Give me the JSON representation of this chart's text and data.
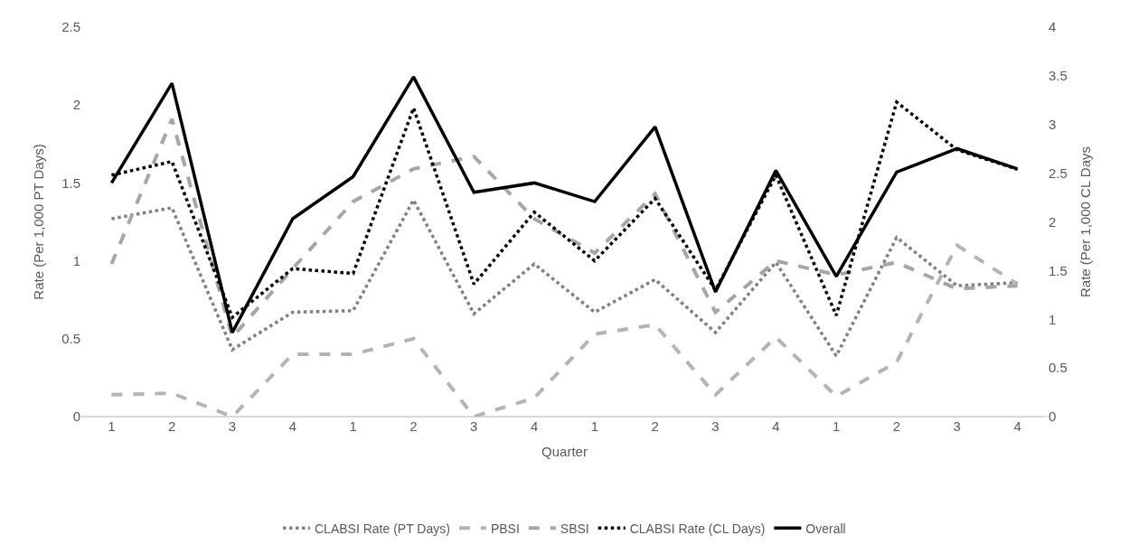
{
  "chart_data": {
    "type": "line",
    "xlabel": "Quarter",
    "ylabel": "Rate (Per 1,000 PT Days)",
    "y2label": "Rate (Per 1,000 CL Days",
    "categories": [
      "1",
      "2",
      "3",
      "4",
      "1",
      "2",
      "3",
      "4",
      "1",
      "2",
      "3",
      "4",
      "1",
      "2",
      "3",
      "4"
    ],
    "ylim": [
      0,
      2.5
    ],
    "yticks": [
      0,
      0.5,
      1,
      1.5,
      2,
      2.5
    ],
    "y2lim": [
      0,
      4
    ],
    "y2ticks": [
      0,
      0.5,
      1,
      1.5,
      2,
      2.5,
      3,
      3.5,
      4
    ],
    "grid": false,
    "legend": "bottom",
    "marker": "none",
    "series": [
      {
        "name": "CLABSI Rate (PT Days)",
        "color": "#808080",
        "line_style": "dotted",
        "values": [
          1.27,
          1.34,
          0.43,
          0.67,
          0.68,
          1.39,
          0.66,
          0.98,
          0.67,
          0.88,
          0.54,
          0.99,
          0.39,
          1.15,
          0.84,
          0.86
        ]
      },
      {
        "name": "PBSI",
        "color": "#b4b4b4",
        "line_style": "dashed",
        "values": [
          0.14,
          0.15,
          0.0,
          0.4,
          0.4,
          0.5,
          0.0,
          0.12,
          0.53,
          0.59,
          0.14,
          0.51,
          0.13,
          0.35,
          1.1,
          0.85
        ]
      },
      {
        "name": "SBSI",
        "color": "#a6a6a6",
        "line_style": "dashed",
        "values": [
          0.98,
          1.91,
          0.51,
          0.95,
          1.38,
          1.59,
          1.67,
          1.27,
          1.05,
          1.43,
          0.67,
          1.0,
          0.91,
          0.99,
          0.82,
          0.84
        ]
      },
      {
        "name": "CLABSI Rate (CL Days)",
        "color": "#000000",
        "line_style": "dotted",
        "axis": "y2",
        "values": [
          2.48,
          2.62,
          1.02,
          1.52,
          1.47,
          3.17,
          1.36,
          2.1,
          1.6,
          2.24,
          1.3,
          2.48,
          1.04,
          3.23,
          2.74,
          2.54
        ]
      },
      {
        "name": "Overall",
        "color": "#000000",
        "line_style": "solid",
        "values": [
          1.5,
          2.14,
          0.54,
          1.27,
          1.54,
          2.18,
          1.44,
          1.5,
          1.38,
          1.86,
          0.8,
          1.58,
          0.9,
          1.57,
          1.72,
          1.59
        ]
      }
    ]
  }
}
